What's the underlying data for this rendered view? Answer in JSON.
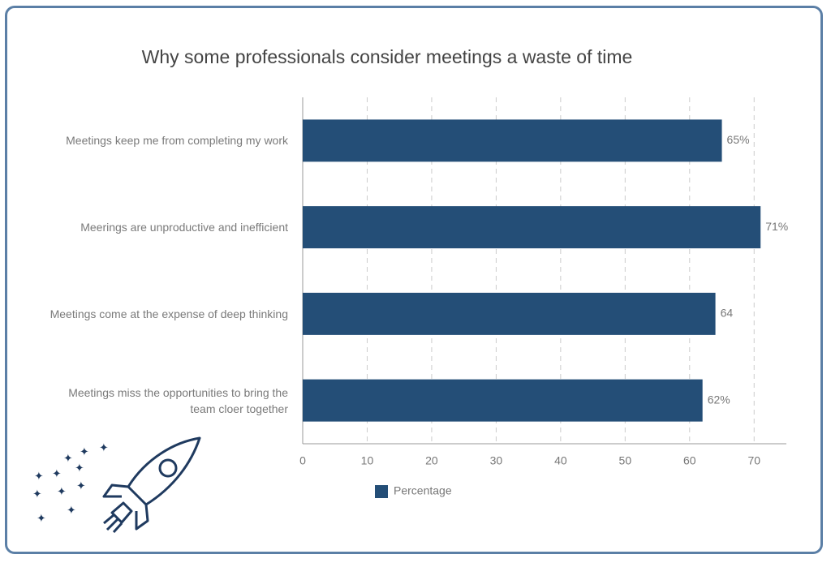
{
  "chart_data": {
    "type": "barh",
    "title": "Why some professionals consider meetings a waste of time",
    "categories": [
      "Meetings keep me from completing my work",
      "Meerings are unproductive and inefficient",
      "Meetings come at the expense of deep thinking",
      "Meetings miss the opportunities to bring the team cloer together"
    ],
    "series": [
      {
        "name": "Percentage",
        "color": "#244e77",
        "values": [
          65,
          71,
          64,
          62
        ],
        "value_labels": [
          "65%",
          "71%",
          "64",
          "62%"
        ]
      }
    ],
    "xlim": [
      0,
      75
    ],
    "xticks": [
      0,
      10,
      20,
      30,
      40,
      50,
      60,
      70
    ],
    "grid": true,
    "legend": "bottom"
  }
}
